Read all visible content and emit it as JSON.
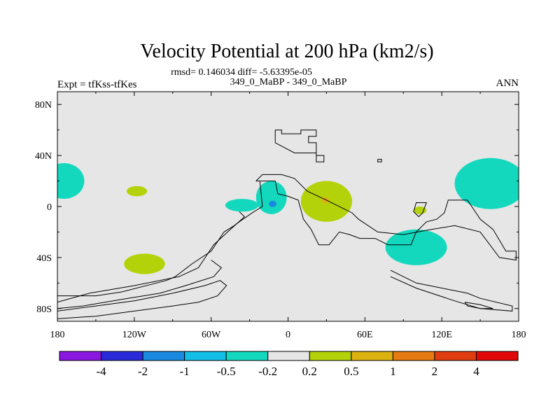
{
  "chart_data": {
    "type": "contour_map",
    "title": "Velocity Potential at 200 hPa (km2/s)",
    "stats_line": "rmsd= 0.146034 diff= -5.63395e-05",
    "left_label": "Expt = tfKss-tfKes",
    "center_label": "349_0_MaBP - 349_0_MaBP",
    "right_label": "ANN",
    "xlim": [
      -180,
      180
    ],
    "ylim": [
      -90,
      90
    ],
    "x_ticks": [
      {
        "value": -180,
        "label": "180"
      },
      {
        "value": -120,
        "label": "120W"
      },
      {
        "value": -60,
        "label": "60W"
      },
      {
        "value": 0,
        "label": "0"
      },
      {
        "value": 60,
        "label": "60E"
      },
      {
        "value": 120,
        "label": "120E"
      },
      {
        "value": 180,
        "label": "180"
      }
    ],
    "y_ticks": [
      {
        "value": 80,
        "label": "80N"
      },
      {
        "value": 40,
        "label": "40N"
      },
      {
        "value": 0,
        "label": "0"
      },
      {
        "value": -40,
        "label": "40S"
      },
      {
        "value": -80,
        "label": "80S"
      }
    ],
    "colorbar": {
      "colors": [
        "#8a18e0",
        "#2a2ad8",
        "#1a8ae0",
        "#12bee6",
        "#14d8be",
        "#e6e6e6",
        "#b4d20a",
        "#dcb210",
        "#e47a10",
        "#e03c10",
        "#e00808"
      ],
      "labels": [
        "-4",
        "-2",
        "-1",
        "-0.5",
        "-0.2",
        "0.2",
        "0.5",
        "1",
        "2",
        "4"
      ]
    },
    "anomaly_regions": [
      {
        "lon": -175,
        "lat": 20,
        "rlon": 16,
        "rlat": 14,
        "color": "#14d8be"
      },
      {
        "lon": -118,
        "lat": 12,
        "rlon": 8,
        "rlat": 4,
        "color": "#b4d20a"
      },
      {
        "lon": -112,
        "lat": -45,
        "rlon": 16,
        "rlat": 8,
        "color": "#b4d20a"
      },
      {
        "lon": -36,
        "lat": 1,
        "rlon": 13,
        "rlat": 5,
        "color": "#14d8be"
      },
      {
        "lon": -13,
        "lat": 7,
        "rlon": 12,
        "rlat": 13,
        "color": "#14d8be"
      },
      {
        "lon": -12,
        "lat": 2,
        "rlon": 3,
        "rlat": 2.5,
        "color": "#1a8ae0"
      },
      {
        "lon": 30,
        "lat": 4,
        "rlon": 20,
        "rlat": 16,
        "color": "#b4d20a"
      },
      {
        "lon": 29,
        "lat": 5,
        "rlon": 3,
        "rlat": 2.5,
        "color": "#dcb210"
      },
      {
        "lon": 103,
        "lat": -3,
        "rlon": 5,
        "rlat": 3,
        "color": "#b4d20a"
      },
      {
        "lon": 100,
        "lat": -32,
        "rlon": 24,
        "rlat": 14,
        "color": "#14d8be"
      },
      {
        "lon": 158,
        "lat": 18,
        "rlon": 28,
        "rlat": 20,
        "color": "#14d8be"
      }
    ],
    "land_outlines": [
      [
        [
          -10,
          50
        ],
        [
          -10,
          60
        ],
        [
          -5,
          60
        ],
        [
          -5,
          57
        ],
        [
          10,
          57
        ],
        [
          10,
          60
        ],
        [
          22,
          60
        ],
        [
          22,
          55
        ],
        [
          16,
          55
        ],
        [
          16,
          50
        ],
        [
          22,
          50
        ],
        [
          22,
          40
        ],
        [
          28,
          40
        ],
        [
          28,
          35
        ],
        [
          22,
          35
        ],
        [
          22,
          42
        ],
        [
          5,
          42
        ],
        [
          -10,
          50
        ]
      ],
      [
        [
          70,
          37
        ],
        [
          73,
          37
        ],
        [
          73,
          35
        ],
        [
          70,
          35
        ],
        [
          70,
          37
        ]
      ],
      [
        [
          -25,
          20
        ],
        [
          -10,
          20
        ],
        [
          -8,
          10
        ],
        [
          0,
          8
        ],
        [
          8,
          5
        ],
        [
          12,
          -10
        ],
        [
          18,
          -18
        ],
        [
          24,
          -30
        ],
        [
          32,
          -30
        ],
        [
          40,
          -20
        ],
        [
          48,
          -22
        ],
        [
          56,
          -25
        ],
        [
          68,
          -25
        ],
        [
          78,
          -30
        ],
        [
          96,
          -30
        ],
        [
          100,
          -20
        ],
        [
          108,
          -12
        ],
        [
          116,
          -10
        ],
        [
          122,
          -5
        ],
        [
          125,
          5
        ],
        [
          140,
          5
        ],
        [
          150,
          -10
        ],
        [
          160,
          -18
        ],
        [
          170,
          -35
        ],
        [
          178,
          -35
        ],
        [
          178,
          -42
        ],
        [
          165,
          -40
        ],
        [
          150,
          -20
        ],
        [
          130,
          -15
        ],
        [
          112,
          -18
        ],
        [
          90,
          -22
        ],
        [
          70,
          -20
        ],
        [
          55,
          -10
        ],
        [
          50,
          -5
        ],
        [
          30,
          5
        ],
        [
          15,
          12
        ],
        [
          5,
          22
        ],
        [
          -5,
          25
        ],
        [
          -20,
          25
        ],
        [
          -25,
          20
        ]
      ],
      [
        [
          -22,
          20
        ],
        [
          -20,
          0
        ],
        [
          -28,
          -5
        ],
        [
          -38,
          -12
        ],
        [
          -42,
          -15
        ],
        [
          -50,
          -20
        ],
        [
          -60,
          -35
        ],
        [
          -75,
          -45
        ],
        [
          -88,
          -55
        ],
        [
          -95,
          -58
        ],
        [
          -130,
          -67
        ],
        [
          -150,
          -70
        ],
        [
          -180,
          -70
        ]
      ],
      [
        [
          -38,
          -4
        ],
        [
          -34,
          -8
        ],
        [
          -45,
          -18
        ],
        [
          -58,
          -30
        ],
        [
          -70,
          -48
        ],
        [
          -85,
          -55
        ],
        [
          -120,
          -62
        ],
        [
          -155,
          -68
        ],
        [
          -180,
          -75
        ]
      ],
      [
        [
          -60,
          -42
        ],
        [
          -52,
          -48
        ],
        [
          -58,
          -55
        ],
        [
          -80,
          -62
        ],
        [
          -100,
          -68
        ],
        [
          -125,
          -72
        ],
        [
          -160,
          -78
        ],
        [
          -180,
          -80
        ]
      ],
      [
        [
          -180,
          -88
        ],
        [
          -150,
          -86
        ],
        [
          -120,
          -82
        ],
        [
          -90,
          -78
        ],
        [
          -70,
          -75
        ],
        [
          -55,
          -70
        ],
        [
          -48,
          -62
        ],
        [
          -53,
          -58
        ],
        [
          -65,
          -62
        ],
        [
          -90,
          -68
        ],
        [
          -120,
          -74
        ],
        [
          -150,
          -78
        ],
        [
          -180,
          -82
        ]
      ],
      [
        [
          80,
          -50
        ],
        [
          100,
          -60
        ],
        [
          125,
          -65
        ],
        [
          140,
          -68
        ],
        [
          150,
          -72
        ],
        [
          175,
          -78
        ],
        [
          175,
          -82
        ],
        [
          150,
          -80
        ],
        [
          130,
          -74
        ],
        [
          100,
          -64
        ],
        [
          80,
          -55
        ]
      ],
      [
        [
          138,
          -75
        ],
        [
          150,
          -77
        ],
        [
          160,
          -80
        ],
        [
          150,
          -80
        ],
        [
          140,
          -78
        ],
        [
          138,
          -75
        ]
      ],
      [
        [
          102,
          -8
        ],
        [
          105,
          -5
        ],
        [
          108,
          3
        ],
        [
          100,
          3
        ],
        [
          98,
          -4
        ],
        [
          102,
          -8
        ]
      ]
    ]
  }
}
